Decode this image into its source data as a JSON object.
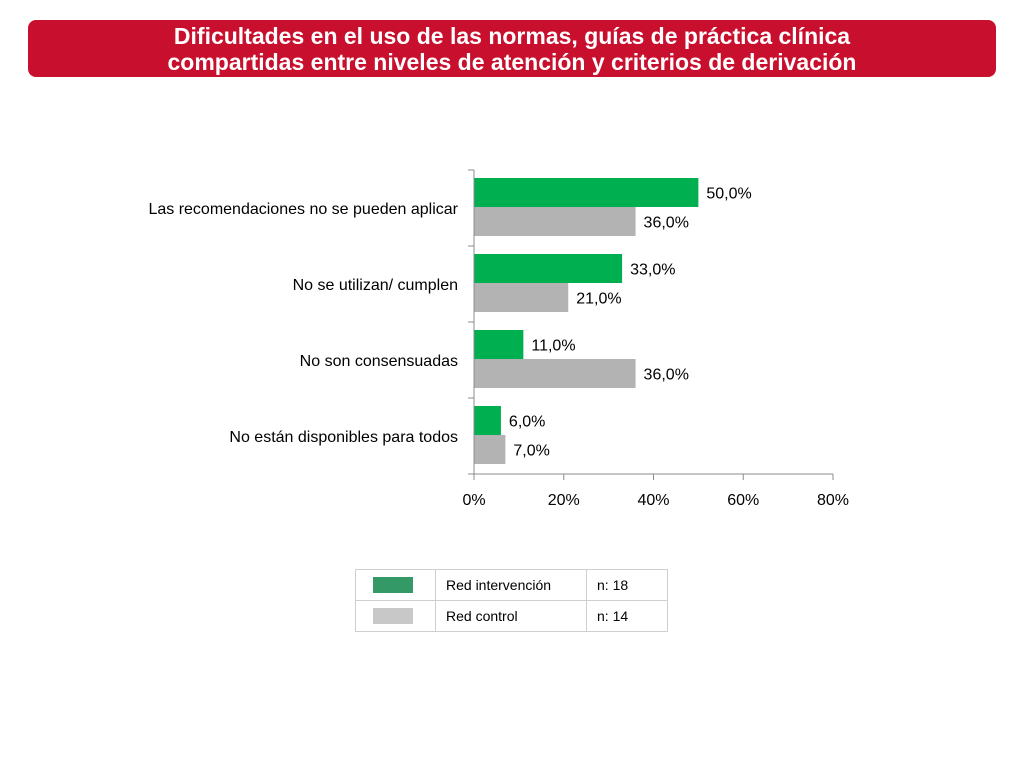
{
  "title": {
    "line1": "Dificultades en el uso de las normas, guías de práctica clínica",
    "line2": "compartidas entre niveles de atención y criterios de derivación"
  },
  "colors": {
    "banner": "#c8102e",
    "intervencion": "#00b050",
    "control": "#b3b3b3",
    "legend_intervencion": "#339966",
    "legend_control": "#c8c8c8"
  },
  "chart_data": {
    "type": "bar",
    "orientation": "horizontal",
    "categories": [
      "Las recomendaciones no se pueden aplicar",
      "No se utilizan/ cumplen",
      "No son consensuadas",
      "No están disponibles para todos"
    ],
    "series": [
      {
        "name": "Red intervención",
        "values": [
          50.0,
          33.0,
          11.0,
          6.0
        ],
        "labels": [
          "50,0%",
          "33,0%",
          "11,0%",
          "6,0%"
        ]
      },
      {
        "name": "Red control",
        "values": [
          36.0,
          21.0,
          36.0,
          7.0
        ],
        "labels": [
          "36,0%",
          "21,0%",
          "36,0%",
          "7,0%"
        ]
      }
    ],
    "xlim": [
      0,
      80
    ],
    "xticks": [
      0,
      20,
      40,
      60,
      80
    ],
    "xtick_labels": [
      "0%",
      "20%",
      "40%",
      "60%",
      "80%"
    ],
    "grid": false
  },
  "legend": {
    "items": [
      {
        "label": "Red intervención",
        "n": "n: 18",
        "color": "#339966"
      },
      {
        "label": "Red control",
        "n": "n: 14",
        "color": "#c8c8c8"
      }
    ]
  }
}
